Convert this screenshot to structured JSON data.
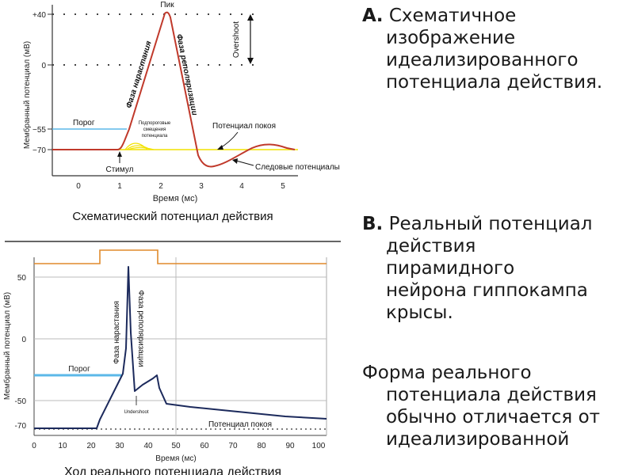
{
  "diagram_a": {
    "caption": "Схематический потенциал действия",
    "y_axis_label": "Мембранный потенциал (мВ)",
    "x_axis_label": "Время (мс)",
    "y_ticks": [
      "+40",
      "0",
      "−55",
      "−70"
    ],
    "x_ticks": [
      "0",
      "1",
      "2",
      "3",
      "4",
      "5"
    ],
    "label_peak": "Пик",
    "label_overshoot": "Overshoot",
    "label_rising": "Фаза нарастания",
    "label_falling": "Фаза реполяризации",
    "label_threshold": "Порог",
    "label_subthreshold_1": "Подпороговые",
    "label_subthreshold_2": "смещения",
    "label_subthreshold_3": "потенциала",
    "label_resting": "Потенциал покоя",
    "label_stimulus": "Стимул",
    "label_after": "Следовые потенциалы"
  },
  "diagram_b": {
    "caption": "Ход реального потенциала действия",
    "y_axis_label": "Мембранный потенциал (мВ)",
    "x_axis_label": "Время (мс)",
    "y_ticks": [
      "50",
      "0",
      "-50",
      "-70"
    ],
    "x_ticks": [
      "0",
      "10",
      "20",
      "30",
      "40",
      "50",
      "60",
      "70",
      "80",
      "90",
      "100"
    ],
    "label_threshold": "Порог",
    "label_rising": "Фаза нарастания",
    "label_falling": "Фаза реполяризации",
    "label_undershoot": "Undershoot",
    "label_resting": "Потенциал покоя"
  },
  "text_a": {
    "marker": "А.",
    "line1": " Схематичное",
    "line2": "изображение",
    "line3": "идеализированного",
    "line4": "потенциала действия."
  },
  "text_b": {
    "marker": "В.",
    "line1": " Реальный потенциал",
    "line2": "действия",
    "line3": "пирамидного",
    "line4": "нейрона гиппокампа",
    "line5": "крысы."
  },
  "text_c": {
    "line1": "Форма реального",
    "line2": "потенциала действия",
    "line3": "обычно отличается от",
    "line4": "идеализированной"
  },
  "colors": {
    "action_potential": "#c0392b",
    "threshold_line": "#5bb8e8",
    "resting_line": "#f2e200",
    "real_trace": "#1c2a5c",
    "stimulus_trace": "#e08a2c"
  }
}
